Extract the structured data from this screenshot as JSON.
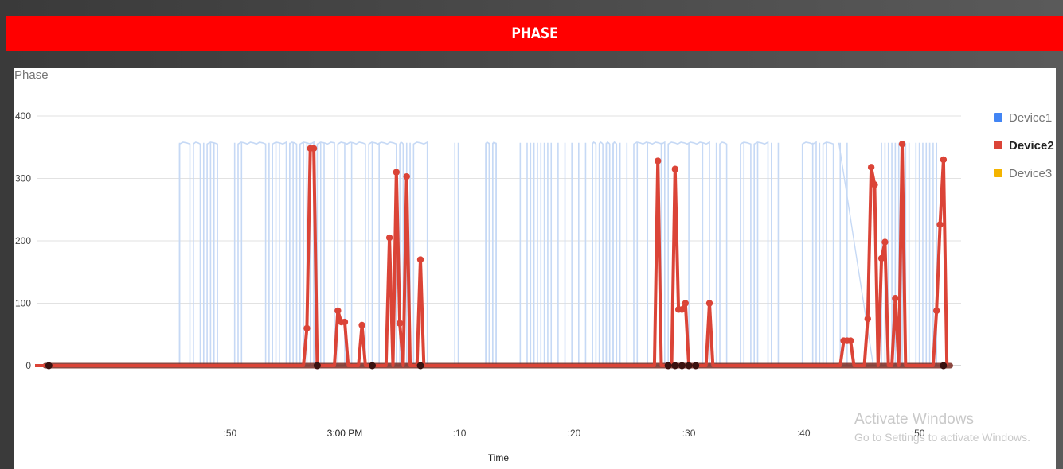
{
  "banner": {
    "title": "PHASE"
  },
  "chart_data": {
    "type": "line",
    "title": "Phase",
    "xlabel": "Time",
    "ylabel": "",
    "ylim": [
      -50,
      420
    ],
    "xlim": [
      2.55,
      3.87
    ],
    "x_unit": "time (PM, hour + minute/60 style offset from 2:00 PM)",
    "yticks": [
      0,
      100,
      200,
      300,
      400
    ],
    "xticks": [
      {
        "value": 2.8333,
        "label": ":50"
      },
      {
        "value": 3.0,
        "label": "3:00 PM"
      },
      {
        "value": 3.1667,
        "label": ":10"
      },
      {
        "value": 3.3333,
        "label": ":20"
      },
      {
        "value": 3.5,
        "label": ":30"
      },
      {
        "value": 3.6667,
        "label": ":40"
      },
      {
        "value": 3.8333,
        "label": ":50"
      }
    ],
    "grid": true,
    "legend_position": "right",
    "series": [
      {
        "name": "Device1",
        "color": "#4285f4",
        "style": "faded",
        "segments_high": [
          [
            2.76,
            2.775
          ],
          [
            2.78,
            2.79
          ],
          [
            2.8,
            2.815
          ],
          [
            2.845,
            2.885
          ],
          [
            2.895,
            2.915
          ],
          [
            2.92,
            2.93
          ],
          [
            2.935,
            2.955
          ],
          [
            2.96,
            2.985
          ],
          [
            2.99,
            3.03
          ],
          [
            3.035,
            3.075
          ],
          [
            3.08,
            3.085
          ],
          [
            3.1,
            3.12
          ],
          [
            3.205,
            3.21
          ],
          [
            3.215,
            3.22
          ],
          [
            3.36,
            3.365
          ],
          [
            3.37,
            3.375
          ],
          [
            3.38,
            3.385
          ],
          [
            3.39,
            3.395
          ],
          [
            3.42,
            3.465
          ],
          [
            3.47,
            3.53
          ],
          [
            3.545,
            3.555
          ],
          [
            3.575,
            3.59
          ],
          [
            3.595,
            3.615
          ],
          [
            3.665,
            3.685
          ],
          [
            3.695,
            3.71
          ]
        ],
        "spikes": [
          2.76,
          2.78,
          2.795,
          2.805,
          2.81,
          2.84,
          2.85,
          2.89,
          2.9,
          2.905,
          2.92,
          2.925,
          2.94,
          2.945,
          2.95,
          2.955,
          2.965,
          2.97,
          3.0,
          3.01,
          3.04,
          3.05,
          3.09,
          3.095,
          3.16,
          3.165,
          3.205,
          3.21,
          3.215,
          3.22,
          3.255,
          3.265,
          3.27,
          3.275,
          3.28,
          3.285,
          3.29,
          3.295,
          3.3,
          3.31,
          3.32,
          3.33,
          3.34,
          3.35,
          3.36,
          3.37,
          3.38,
          3.39,
          3.4,
          3.41,
          3.425,
          3.44,
          3.46,
          3.5,
          3.52,
          3.54,
          3.58,
          3.6,
          3.62,
          3.63,
          3.68,
          3.69,
          3.7,
          3.72,
          3.73,
          3.78,
          3.785,
          3.79,
          3.795,
          3.8,
          3.805,
          3.81,
          3.815,
          3.82,
          3.83,
          3.835,
          3.84,
          3.845,
          3.85,
          3.855,
          3.86
        ]
      },
      {
        "name": "Device2",
        "color": "#db4437",
        "points": [
          [
            2.55,
            0
          ],
          [
            2.94,
            0
          ],
          [
            2.945,
            60
          ],
          [
            2.95,
            348
          ],
          [
            2.955,
            348
          ],
          [
            2.96,
            0
          ],
          [
            2.985,
            0
          ],
          [
            2.99,
            88
          ],
          [
            2.995,
            70
          ],
          [
            3.0,
            70
          ],
          [
            3.005,
            0
          ],
          [
            3.02,
            0
          ],
          [
            3.025,
            65
          ],
          [
            3.03,
            0
          ],
          [
            3.06,
            0
          ],
          [
            3.065,
            205
          ],
          [
            3.07,
            0
          ],
          [
            3.075,
            310
          ],
          [
            3.08,
            68
          ],
          [
            3.085,
            0
          ],
          [
            3.09,
            303
          ],
          [
            3.095,
            0
          ],
          [
            3.105,
            0
          ],
          [
            3.11,
            170
          ],
          [
            3.115,
            0
          ],
          [
            3.45,
            0
          ],
          [
            3.455,
            328
          ],
          [
            3.46,
            0
          ],
          [
            3.475,
            0
          ],
          [
            3.48,
            315
          ],
          [
            3.485,
            90
          ],
          [
            3.49,
            90
          ],
          [
            3.495,
            100
          ],
          [
            3.5,
            0
          ],
          [
            3.525,
            0
          ],
          [
            3.53,
            100
          ],
          [
            3.535,
            0
          ],
          [
            3.72,
            0
          ],
          [
            3.725,
            40
          ],
          [
            3.73,
            40
          ],
          [
            3.735,
            40
          ],
          [
            3.74,
            0
          ],
          [
            3.755,
            0
          ],
          [
            3.76,
            75
          ],
          [
            3.765,
            318
          ],
          [
            3.77,
            290
          ],
          [
            3.775,
            0
          ],
          [
            3.78,
            172
          ],
          [
            3.785,
            198
          ],
          [
            3.79,
            0
          ],
          [
            3.795,
            0
          ],
          [
            3.8,
            108
          ],
          [
            3.805,
            0
          ],
          [
            3.81,
            355
          ],
          [
            3.815,
            0
          ],
          [
            3.855,
            0
          ],
          [
            3.86,
            88
          ],
          [
            3.865,
            226
          ],
          [
            3.87,
            330
          ],
          [
            3.875,
            0
          ]
        ]
      },
      {
        "name": "Device3",
        "color": "#f4b400",
        "points": []
      }
    ]
  },
  "watermark": {
    "line1": "Activate Windows",
    "line2": "Go to Settings to activate Windows."
  }
}
